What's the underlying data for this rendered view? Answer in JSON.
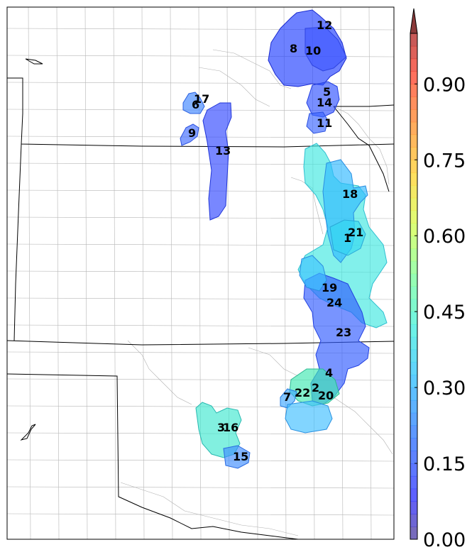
{
  "regions": [
    {
      "id": "12",
      "value": 0.12
    },
    {
      "id": "8",
      "value": 0.1
    },
    {
      "id": "10",
      "value": 0.13
    },
    {
      "id": "5",
      "value": 0.14
    },
    {
      "id": "14",
      "value": 0.12
    },
    {
      "id": "11",
      "value": 0.15
    },
    {
      "id": "17",
      "value": 0.2
    },
    {
      "id": "6",
      "value": 0.18
    },
    {
      "id": "9",
      "value": 0.14
    },
    {
      "id": "13",
      "value": 0.13
    },
    {
      "id": "18",
      "value": 0.2
    },
    {
      "id": "21",
      "value": 0.32
    },
    {
      "id": "1",
      "value": 0.4
    },
    {
      "id": "19",
      "value": 0.22
    },
    {
      "id": "24",
      "value": 0.18
    },
    {
      "id": "23",
      "value": 0.16
    },
    {
      "id": "4",
      "value": 0.22
    },
    {
      "id": "2",
      "value": 0.38
    },
    {
      "id": "22",
      "value": 0.4
    },
    {
      "id": "20",
      "value": 0.42
    },
    {
      "id": "7",
      "value": 0.18
    },
    {
      "id": "3",
      "value": 0.42
    },
    {
      "id": "16",
      "value": 0.4
    },
    {
      "id": "15",
      "value": 0.2
    }
  ],
  "colorbar": {
    "ticks": [
      "0.00",
      "0.15",
      "0.30",
      "0.45",
      "0.60",
      "0.75",
      "0.90"
    ],
    "min": 0.0,
    "max": 1.0
  }
}
